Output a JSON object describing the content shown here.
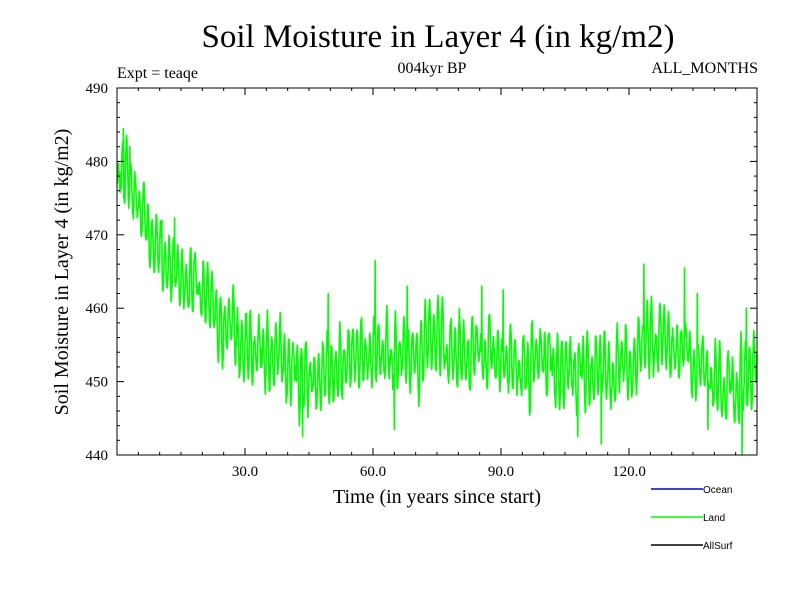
{
  "chart_data": {
    "type": "line",
    "title": "Soil Moisture in Layer 4 (in kg/m2)",
    "subtitle_left": "Expt = teaqe",
    "subtitle_center": "004kyr BP",
    "subtitle_right": "ALL_MONTHS",
    "xlabel": "Time (in years since start)",
    "ylabel": "Soil Moisture in Layer 4 (in kg/m2)",
    "xlim": [
      0,
      150
    ],
    "ylim": [
      440,
      490
    ],
    "x_ticks": [
      {
        "value": 30,
        "label": "30.0"
      },
      {
        "value": 60,
        "label": "60.0"
      },
      {
        "value": 90,
        "label": "90.0"
      },
      {
        "value": 120,
        "label": "120.0"
      }
    ],
    "y_ticks": [
      {
        "value": 440,
        "label": "440"
      },
      {
        "value": 450,
        "label": "450"
      },
      {
        "value": 460,
        "label": "460"
      },
      {
        "value": 470,
        "label": "470"
      },
      {
        "value": 480,
        "label": "480"
      },
      {
        "value": 490,
        "label": "490"
      }
    ],
    "samples_per_year": 12,
    "series": [
      {
        "name": "Land",
        "color": "#00ff00",
        "baseline": [
          [
            0,
            475
          ],
          [
            2,
            481
          ],
          [
            4,
            476
          ],
          [
            6,
            473
          ],
          [
            8,
            471
          ],
          [
            10,
            467
          ],
          [
            13,
            466
          ],
          [
            16,
            465
          ],
          [
            20,
            462
          ],
          [
            25,
            458
          ],
          [
            30,
            455
          ],
          [
            35,
            454
          ],
          [
            40,
            452
          ],
          [
            45,
            450.5
          ],
          [
            50,
            453
          ],
          [
            55,
            452
          ],
          [
            60,
            455
          ],
          [
            65,
            453.5
          ],
          [
            70,
            454
          ],
          [
            75,
            455
          ],
          [
            80,
            453
          ],
          [
            85,
            454
          ],
          [
            90,
            453.5
          ],
          [
            95,
            452
          ],
          [
            100,
            453
          ],
          [
            105,
            452
          ],
          [
            110,
            451
          ],
          [
            115,
            451
          ],
          [
            120,
            452
          ],
          [
            125,
            455
          ],
          [
            130,
            455
          ],
          [
            135,
            453
          ],
          [
            140,
            450
          ],
          [
            145,
            449
          ],
          [
            150,
            452
          ]
        ],
        "seasonal_amplitude": 3.6,
        "peaks": [
          [
            1.5,
            484.5
          ],
          [
            3,
            482
          ],
          [
            10.5,
            472
          ],
          [
            13.5,
            472.3
          ],
          [
            49.5,
            462
          ],
          [
            60.5,
            466.5
          ],
          [
            68,
            463
          ],
          [
            85.5,
            463
          ],
          [
            90.5,
            462.5
          ],
          [
            123.5,
            466
          ],
          [
            133,
            465.5
          ],
          [
            136,
            462
          ],
          [
            147.5,
            460
          ]
        ],
        "troughs": [
          [
            43.5,
            442.5
          ],
          [
            65,
            443.5
          ],
          [
            108,
            442.5
          ],
          [
            113.5,
            441.5
          ],
          [
            138.5,
            443.5
          ],
          [
            146.5,
            440
          ]
        ]
      }
    ],
    "legend": [
      {
        "label": "Ocean",
        "color": "#0000cc"
      },
      {
        "label": "Land",
        "color": "#00ff00"
      },
      {
        "label": "AllSurf",
        "color": "#000000"
      }
    ]
  }
}
